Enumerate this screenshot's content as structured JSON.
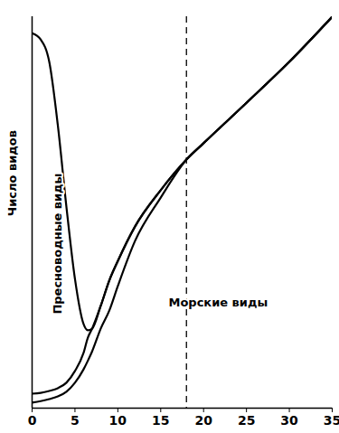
{
  "chart_data": {
    "type": "area",
    "stacked": true,
    "y_label": "Число видов",
    "x": [
      0,
      1,
      2,
      3,
      4,
      5,
      6,
      6.5,
      7,
      8,
      9,
      10,
      12,
      15,
      18,
      20,
      25,
      30,
      35
    ],
    "xlim": [
      0,
      35
    ],
    "xticks": [
      0,
      5,
      10,
      15,
      20,
      25,
      30,
      35
    ],
    "ylim": [
      0,
      100
    ],
    "yticks": [],
    "tick_labels": "x",
    "series": [
      {
        "name": "Морские виды",
        "color": "#000000",
        "values": [
          1.4,
          1.8,
          2.3,
          3.0,
          4.2,
          6.5,
          9.9,
          12.1,
          14.5,
          20.3,
          24.9,
          31.2,
          42.7,
          53.8,
          63.5,
          67.7,
          78,
          88.5,
          100
        ]
      },
      {
        "name": null,
        "color": "#000000",
        "values": [
          2.3,
          2.1,
          2.1,
          2.1,
          2.3,
          3.0,
          4.2,
          5.9,
          5.8,
          5.8,
          7.7,
          6.4,
          3.7,
          1.9,
          0,
          0,
          0,
          0,
          0
        ]
      },
      {
        "name": "Пресноводные виды",
        "color": "#000000",
        "values": [
          92.1,
          90.3,
          84.1,
          67.2,
          45.0,
          23.5,
          7.4,
          1.9,
          0,
          0,
          0,
          0,
          0,
          0,
          0,
          0,
          0,
          0,
          0
        ]
      }
    ],
    "reference_line": {
      "x": 18,
      "line_style": "dashed"
    }
  }
}
